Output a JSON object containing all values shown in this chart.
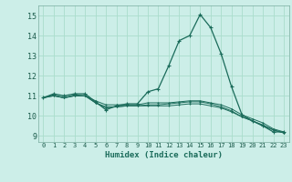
{
  "xlabel": "Humidex (Indice chaleur)",
  "bg_color": "#cceee8",
  "grid_color": "#aaddcc",
  "line_color": "#1a6b5a",
  "xlim": [
    -0.5,
    23.5
  ],
  "ylim": [
    8.7,
    15.5
  ],
  "yticks": [
    9,
    10,
    11,
    12,
    13,
    14,
    15
  ],
  "xticks": [
    0,
    1,
    2,
    3,
    4,
    5,
    6,
    7,
    8,
    9,
    10,
    11,
    12,
    13,
    14,
    15,
    16,
    17,
    18,
    19,
    20,
    21,
    22,
    23
  ],
  "series": [
    [
      10.9,
      11.1,
      11.0,
      11.1,
      11.1,
      10.7,
      10.3,
      10.5,
      10.6,
      10.6,
      11.2,
      11.35,
      12.5,
      13.75,
      14.0,
      15.05,
      14.4,
      13.1,
      11.45,
      10.05,
      9.75,
      9.5,
      9.2,
      9.2
    ],
    [
      10.9,
      11.05,
      10.9,
      11.05,
      11.0,
      10.75,
      10.55,
      10.55,
      10.55,
      10.55,
      10.65,
      10.65,
      10.65,
      10.7,
      10.75,
      10.75,
      10.65,
      10.55,
      10.35,
      10.05,
      9.85,
      9.65,
      9.35,
      9.2
    ],
    [
      10.9,
      11.0,
      10.9,
      11.0,
      11.0,
      10.65,
      10.45,
      10.45,
      10.5,
      10.5,
      10.5,
      10.5,
      10.5,
      10.55,
      10.6,
      10.6,
      10.5,
      10.4,
      10.2,
      9.95,
      9.75,
      9.55,
      9.3,
      9.15
    ],
    [
      10.9,
      11.0,
      10.9,
      11.0,
      11.0,
      10.65,
      10.4,
      10.45,
      10.5,
      10.5,
      10.55,
      10.55,
      10.6,
      10.65,
      10.7,
      10.7,
      10.6,
      10.45,
      10.25,
      9.95,
      9.75,
      9.5,
      9.3,
      9.15
    ]
  ]
}
